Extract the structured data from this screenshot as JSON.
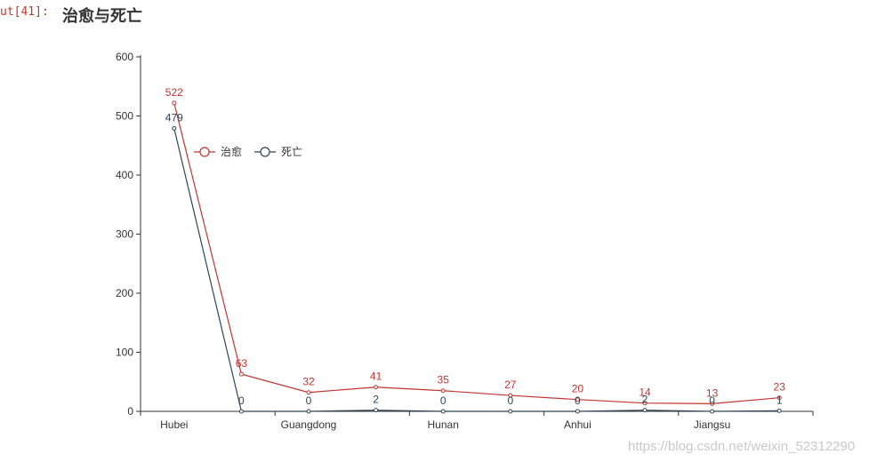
{
  "cell": {
    "prompt": "ut[41]:"
  },
  "watermark": "https://blog.csdn.net/weixin_52312290",
  "colors": {
    "cured": "#c23531",
    "dead": "#2f4554",
    "axis": "#333333"
  },
  "chart_data": {
    "type": "line",
    "title": "治愈与死亡",
    "categories": [
      "Hubei",
      "",
      "Guangdong",
      "",
      "Hunan",
      "",
      "Anhui",
      "",
      "Jiangsu",
      ""
    ],
    "x_tick_labels": [
      "Hubei",
      "Guangdong",
      "Hunan",
      "Anhui",
      "Jiangsu"
    ],
    "ylim": [
      0,
      600
    ],
    "y_ticks": [
      0,
      100,
      200,
      300,
      400,
      500,
      600
    ],
    "legend_position": "left-middle",
    "series": [
      {
        "name": "治愈",
        "values": [
          522,
          63,
          32,
          41,
          35,
          27,
          20,
          14,
          13,
          23
        ]
      },
      {
        "name": "死亡",
        "values": [
          479,
          0,
          0,
          2,
          0,
          0,
          0,
          2,
          0,
          1
        ]
      }
    ],
    "data_labels": [
      [
        "522",
        "63",
        "32",
        "41",
        "35",
        "27",
        "20",
        "14",
        "13",
        "23"
      ],
      [
        "479",
        "0",
        "0",
        "2",
        "0",
        "0",
        "0",
        "2",
        "0",
        "1"
      ]
    ]
  }
}
